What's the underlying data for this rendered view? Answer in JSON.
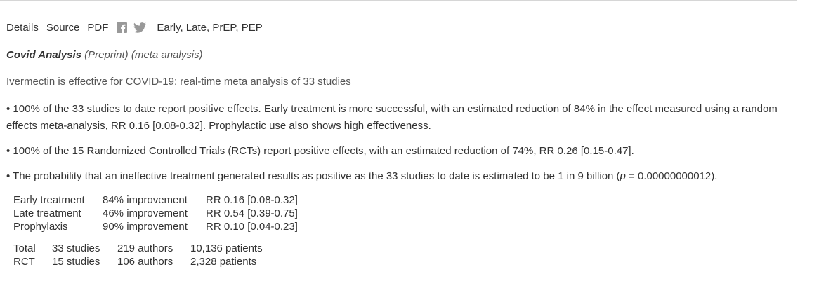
{
  "nav": {
    "details": "Details",
    "source": "Source",
    "pdf": "PDF",
    "facebook_icon": "facebook-icon",
    "twitter_icon": "twitter-icon",
    "tags": "Early, Late, PrEP, PEP"
  },
  "journal": {
    "name": "Covid Analysis",
    "type": "(Preprint) (meta analysis)"
  },
  "title": "Ivermectin is effective for COVID-19: real-time meta analysis of 33 studies",
  "bullets": {
    "b1": "• 100% of the 33 studies to date report positive effects. Early treatment is more successful, with an estimated reduction of 84% in the effect measured using a random effects meta-analysis, RR 0.16 [0.08-0.32]. Prophylactic use also shows high effectiveness.",
    "b2": "• 100% of the 15 Randomized Controlled Trials (RCTs) report positive effects, with an estimated reduction of 74%, RR 0.26 [0.15-0.47].",
    "b3_pre": "• The probability that an ineffective treatment generated results as positive as the 33 studies to date is estimated to be 1 in 9 billion (",
    "b3_p": "p",
    "b3_post": " = 0.00000000012)."
  },
  "effects": [
    {
      "label": "Early treatment",
      "improvement": "84% improvement",
      "rr": "RR 0.16 [0.08-0.32]"
    },
    {
      "label": "Late treatment",
      "improvement": "46% improvement",
      "rr": "RR 0.54 [0.39-0.75]"
    },
    {
      "label": "Prophylaxis",
      "improvement": "90% improvement",
      "rr": "RR 0.10 [0.04-0.23]"
    }
  ],
  "totals": [
    {
      "label": "Total",
      "studies": "33 studies",
      "authors": "219 authors",
      "patients": "10,136 patients"
    },
    {
      "label": "RCT",
      "studies": "15 studies",
      "authors": "106 authors",
      "patients": "2,328 patients"
    }
  ],
  "colors": {
    "text": "#333333",
    "muted": "#555555",
    "icon": "#999999",
    "rule": "#d6d6d6"
  }
}
